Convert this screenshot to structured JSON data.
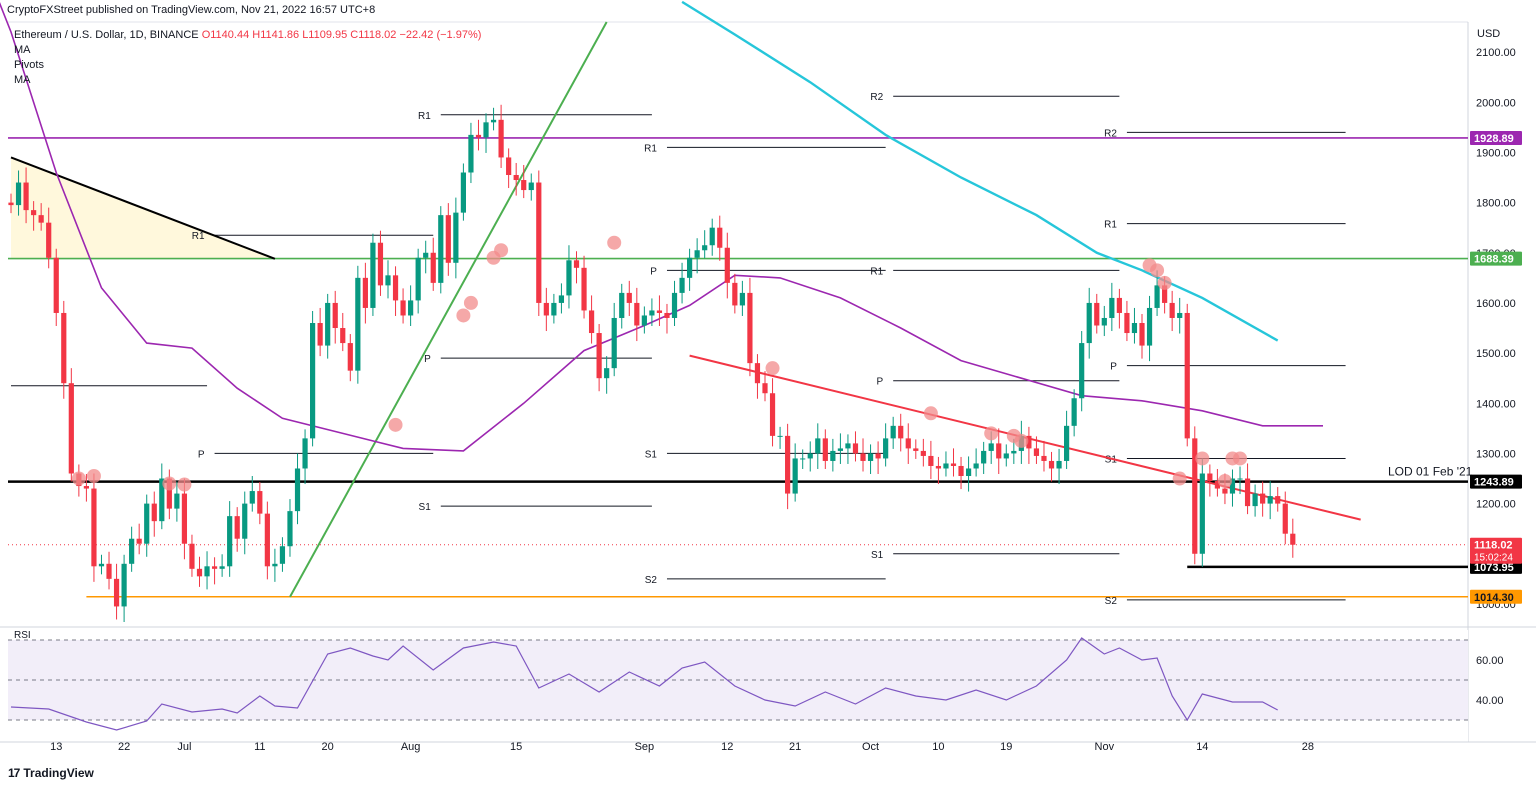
{
  "header": {
    "publish_line": "CryptoFXStreet published on TradingView.com, Nov 21, 2022 16:57 UTC+8"
  },
  "legend": {
    "symbol": "Ethereum / U.S. Dollar, 1D, BINANCE",
    "ohlc": "O1140.44  H1141.86  L1109.95  C1118.02  −22.42 (−1.97%)",
    "indicators": [
      "MA",
      "Pivots",
      "MA"
    ]
  },
  "price_axis": {
    "unit": "USD",
    "ticks": [
      "2100.00",
      "2000.00",
      "1900.00",
      "1800.00",
      "1700.00",
      "1600.00",
      "1500.00",
      "1400.00",
      "1300.00",
      "1200.00",
      "1100.00",
      "1000.00"
    ]
  },
  "rsi_axis": {
    "label": "RSI",
    "ticks": [
      "60.00",
      "40.00"
    ]
  },
  "time_axis": {
    "ticks": [
      "13",
      "22",
      "Jul",
      "11",
      "20",
      "Aug",
      "15",
      "Sep",
      "12",
      "21",
      "Oct",
      "10",
      "19",
      "Nov",
      "14",
      "28"
    ]
  },
  "brand": {
    "name": "TradingView",
    "logo": "17"
  },
  "colors": {
    "up": "#089981",
    "down": "#f23645",
    "ma_fast": "#9c27b0",
    "ma_slow": "#26c6da",
    "trend_red": "#f23645",
    "trend_green": "#4caf50",
    "level_purple": "#9c27b0",
    "level_green": "#4caf50",
    "level_black": "#000000",
    "level_orange": "#ff9800"
  },
  "chart_data": {
    "type": "candlestick",
    "title": "Ethereum / U.S. Dollar, 1D, BINANCE",
    "ylim": [
      960,
      2160
    ],
    "rsi_ylim": [
      25,
      75
    ],
    "x_ticks": [
      {
        "i": 6,
        "label": "13"
      },
      {
        "i": 15,
        "label": "22"
      },
      {
        "i": 23,
        "label": "Jul"
      },
      {
        "i": 33,
        "label": "11"
      },
      {
        "i": 42,
        "label": "20"
      },
      {
        "i": 53,
        "label": "Aug"
      },
      {
        "i": 67,
        "label": "15"
      },
      {
        "i": 84,
        "label": "Sep"
      },
      {
        "i": 95,
        "label": "12"
      },
      {
        "i": 104,
        "label": "21"
      },
      {
        "i": 114,
        "label": "Oct"
      },
      {
        "i": 123,
        "label": "10"
      },
      {
        "i": 132,
        "label": "19"
      },
      {
        "i": 145,
        "label": "Nov"
      },
      {
        "i": 158,
        "label": "14"
      },
      {
        "i": 172,
        "label": "28"
      }
    ],
    "closes": [
      1795,
      1840,
      1785,
      1775,
      1760,
      1690,
      1580,
      1440,
      1260,
      1235,
      1230,
      1075,
      1080,
      1050,
      995,
      1080,
      1130,
      1120,
      1200,
      1165,
      1250,
      1190,
      1220,
      1120,
      1070,
      1055,
      1075,
      1070,
      1075,
      1175,
      1130,
      1200,
      1225,
      1180,
      1075,
      1080,
      1115,
      1185,
      1270,
      1330,
      1560,
      1515,
      1600,
      1550,
      1520,
      1465,
      1650,
      1590,
      1720,
      1635,
      1655,
      1605,
      1575,
      1605,
      1690,
      1700,
      1640,
      1775,
      1680,
      1780,
      1860,
      1935,
      1930,
      1960,
      1965,
      1890,
      1855,
      1845,
      1825,
      1840,
      1600,
      1575,
      1600,
      1615,
      1685,
      1670,
      1585,
      1540,
      1450,
      1470,
      1570,
      1620,
      1600,
      1555,
      1575,
      1585,
      1580,
      1570,
      1620,
      1650,
      1690,
      1705,
      1715,
      1750,
      1710,
      1640,
      1595,
      1620,
      1480,
      1440,
      1420,
      1335,
      1335,
      1220,
      1290,
      1290,
      1300,
      1330,
      1285,
      1305,
      1310,
      1320,
      1300,
      1285,
      1300,
      1290,
      1330,
      1355,
      1330,
      1310,
      1305,
      1295,
      1275,
      1270,
      1280,
      1275,
      1255,
      1270,
      1280,
      1305,
      1320,
      1290,
      1300,
      1305,
      1335,
      1310,
      1295,
      1285,
      1270,
      1285,
      1355,
      1410,
      1520,
      1600,
      1555,
      1570,
      1610,
      1580,
      1540,
      1560,
      1515,
      1590,
      1635,
      1600,
      1570,
      1580,
      1330,
      1100,
      1260,
      1245,
      1230,
      1220,
      1250,
      1250,
      1195,
      1220,
      1200,
      1215,
      1200,
      1140,
      1118
    ],
    "ma_fast": [
      {
        "i": -5,
        "v": 2330
      },
      {
        "i": 0,
        "v": 2140
      },
      {
        "i": 6,
        "v": 1860
      },
      {
        "i": 12,
        "v": 1630
      },
      {
        "i": 18,
        "v": 1520
      },
      {
        "i": 24,
        "v": 1510
      },
      {
        "i": 30,
        "v": 1430
      },
      {
        "i": 36,
        "v": 1370
      },
      {
        "i": 44,
        "v": 1340
      },
      {
        "i": 52,
        "v": 1310
      },
      {
        "i": 60,
        "v": 1305
      },
      {
        "i": 68,
        "v": 1400
      },
      {
        "i": 76,
        "v": 1505
      },
      {
        "i": 84,
        "v": 1555
      },
      {
        "i": 90,
        "v": 1595
      },
      {
        "i": 96,
        "v": 1655
      },
      {
        "i": 102,
        "v": 1650
      },
      {
        "i": 110,
        "v": 1610
      },
      {
        "i": 118,
        "v": 1550
      },
      {
        "i": 126,
        "v": 1485
      },
      {
        "i": 134,
        "v": 1450
      },
      {
        "i": 142,
        "v": 1415
      },
      {
        "i": 150,
        "v": 1405
      },
      {
        "i": 158,
        "v": 1385
      },
      {
        "i": 166,
        "v": 1355
      },
      {
        "i": 174,
        "v": 1355
      }
    ],
    "ma_slow": [
      {
        "i": 89,
        "v": 2200
      },
      {
        "i": 96,
        "v": 2135
      },
      {
        "i": 106,
        "v": 2040
      },
      {
        "i": 116,
        "v": 1935
      },
      {
        "i": 126,
        "v": 1850
      },
      {
        "i": 136,
        "v": 1775
      },
      {
        "i": 144,
        "v": 1700
      },
      {
        "i": 150,
        "v": 1665
      },
      {
        "i": 158,
        "v": 1610
      },
      {
        "i": 168,
        "v": 1525
      }
    ],
    "rsi": [
      {
        "i": 0,
        "v": 36.5
      },
      {
        "i": 5,
        "v": 35.5
      },
      {
        "i": 10,
        "v": 29
      },
      {
        "i": 14,
        "v": 25
      },
      {
        "i": 18,
        "v": 29.5
      },
      {
        "i": 20,
        "v": 38
      },
      {
        "i": 24,
        "v": 34
      },
      {
        "i": 28,
        "v": 35.5
      },
      {
        "i": 30,
        "v": 33.5
      },
      {
        "i": 33,
        "v": 42
      },
      {
        "i": 35,
        "v": 37
      },
      {
        "i": 38,
        "v": 36
      },
      {
        "i": 42,
        "v": 63
      },
      {
        "i": 45,
        "v": 66
      },
      {
        "i": 48,
        "v": 62
      },
      {
        "i": 50,
        "v": 60
      },
      {
        "i": 52,
        "v": 67
      },
      {
        "i": 56,
        "v": 55
      },
      {
        "i": 60,
        "v": 66
      },
      {
        "i": 64,
        "v": 69
      },
      {
        "i": 67,
        "v": 67
      },
      {
        "i": 70,
        "v": 46
      },
      {
        "i": 74,
        "v": 53
      },
      {
        "i": 78,
        "v": 44
      },
      {
        "i": 82,
        "v": 54
      },
      {
        "i": 86,
        "v": 47
      },
      {
        "i": 89,
        "v": 56
      },
      {
        "i": 92,
        "v": 59
      },
      {
        "i": 96,
        "v": 47
      },
      {
        "i": 100,
        "v": 40
      },
      {
        "i": 104,
        "v": 37
      },
      {
        "i": 108,
        "v": 44
      },
      {
        "i": 112,
        "v": 38
      },
      {
        "i": 116,
        "v": 46
      },
      {
        "i": 120,
        "v": 42
      },
      {
        "i": 124,
        "v": 40
      },
      {
        "i": 128,
        "v": 45
      },
      {
        "i": 132,
        "v": 40
      },
      {
        "i": 136,
        "v": 47
      },
      {
        "i": 140,
        "v": 60
      },
      {
        "i": 142,
        "v": 71
      },
      {
        "i": 145,
        "v": 63
      },
      {
        "i": 147,
        "v": 66
      },
      {
        "i": 150,
        "v": 60
      },
      {
        "i": 152,
        "v": 61
      },
      {
        "i": 154,
        "v": 42
      },
      {
        "i": 156,
        "v": 30
      },
      {
        "i": 158,
        "v": 43
      },
      {
        "i": 162,
        "v": 39
      },
      {
        "i": 166,
        "v": 39
      },
      {
        "i": 168,
        "v": 35
      }
    ],
    "horizontal_levels": [
      {
        "value": 1928.89,
        "label": "1928.89",
        "color": "#9c27b0"
      },
      {
        "value": 1688.39,
        "label": "1688.39",
        "color": "#4caf50"
      },
      {
        "value": 1243.89,
        "label": "1243.89",
        "color": "#000000",
        "note": "LOD 01 Feb '21"
      },
      {
        "value": 1073.95,
        "label": "1073.95",
        "color": "#000000",
        "from_i": 156
      },
      {
        "value": 1014.3,
        "label": "1014.30",
        "color": "#ff9800",
        "from_i": 10
      }
    ],
    "last_price": {
      "value": 1118.02,
      "label": "1118.02",
      "countdown": "15:02:24"
    },
    "trendlines": [
      {
        "color": "#f23645",
        "from": {
          "i": 90,
          "v": 1495
        },
        "to": {
          "i": 179,
          "v": 1168
        }
      },
      {
        "color": "#4caf50",
        "from": {
          "i": 37,
          "v": 1014
        },
        "to": {
          "i": 79,
          "v": 2160
        }
      },
      {
        "color": "#000000",
        "from": {
          "i": 0,
          "v": 1890
        },
        "to": {
          "i": 35,
          "v": 1688
        }
      }
    ],
    "triangle": {
      "points": [
        {
          "i": 0,
          "v": 1890
        },
        {
          "i": 35,
          "v": 1688
        },
        {
          "i": 0,
          "v": 1688
        }
      ]
    },
    "pivots": [
      {
        "label": "R1",
        "value": 1975,
        "from_i": 57,
        "to_i": 85
      },
      {
        "label": "R1",
        "value": 1735,
        "from_i": 27,
        "to_i": 56
      },
      {
        "label": "P",
        "value": 1300,
        "from_i": 27,
        "to_i": 56
      },
      {
        "label": "",
        "value": 1435,
        "from_i": 0,
        "to_i": 26
      },
      {
        "label": "P",
        "value": 1490,
        "from_i": 57,
        "to_i": 85
      },
      {
        "label": "S1",
        "value": 1195,
        "from_i": 57,
        "to_i": 85
      },
      {
        "label": "R1",
        "value": 1910,
        "from_i": 87,
        "to_i": 116
      },
      {
        "label": "P",
        "value": 1665,
        "from_i": 87,
        "to_i": 116
      },
      {
        "label": "S1",
        "value": 1300,
        "from_i": 87,
        "to_i": 116
      },
      {
        "label": "S2",
        "value": 1050,
        "from_i": 87,
        "to_i": 116
      },
      {
        "label": "R2",
        "value": 2012,
        "from_i": 117,
        "to_i": 147
      },
      {
        "label": "R1",
        "value": 1665,
        "from_i": 117,
        "to_i": 147
      },
      {
        "label": "P",
        "value": 1445,
        "from_i": 117,
        "to_i": 147
      },
      {
        "label": "S1",
        "value": 1100,
        "from_i": 117,
        "to_i": 147
      },
      {
        "label": "R2",
        "value": 1940,
        "from_i": 148,
        "to_i": 177
      },
      {
        "label": "R1",
        "value": 1758,
        "from_i": 148,
        "to_i": 177
      },
      {
        "label": "P",
        "value": 1475,
        "from_i": 148,
        "to_i": 177
      },
      {
        "label": "S1",
        "value": 1290,
        "from_i": 148,
        "to_i": 177
      },
      {
        "label": "S2",
        "value": 1008,
        "from_i": 148,
        "to_i": 177
      }
    ],
    "markers": [
      {
        "i": 9,
        "v": 1250
      },
      {
        "i": 11,
        "v": 1255
      },
      {
        "i": 21,
        "v": 1240
      },
      {
        "i": 23,
        "v": 1238
      },
      {
        "i": 51,
        "v": 1357
      },
      {
        "i": 60,
        "v": 1575
      },
      {
        "i": 61,
        "v": 1600
      },
      {
        "i": 64,
        "v": 1690
      },
      {
        "i": 65,
        "v": 1705
      },
      {
        "i": 80,
        "v": 1720
      },
      {
        "i": 101,
        "v": 1470
      },
      {
        "i": 122,
        "v": 1380
      },
      {
        "i": 130,
        "v": 1340
      },
      {
        "i": 133,
        "v": 1335
      },
      {
        "i": 134,
        "v": 1325
      },
      {
        "i": 151,
        "v": 1675
      },
      {
        "i": 152,
        "v": 1665
      },
      {
        "i": 153,
        "v": 1640
      },
      {
        "i": 155,
        "v": 1250
      },
      {
        "i": 158,
        "v": 1290
      },
      {
        "i": 162,
        "v": 1290
      },
      {
        "i": 163,
        "v": 1290
      },
      {
        "i": 161,
        "v": 1245
      }
    ]
  }
}
